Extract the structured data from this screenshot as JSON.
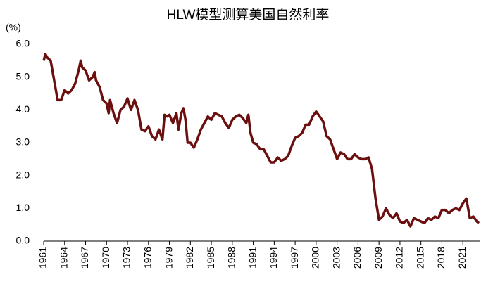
{
  "chart_data": {
    "type": "line",
    "title": "HLW模型测算美国自然利率",
    "y_unit": "(%)",
    "x": [
      1961,
      1961.25,
      1961.5,
      1962,
      1962.5,
      1963,
      1963.5,
      1964,
      1964.5,
      1965,
      1965.5,
      1966,
      1966.3,
      1966.5,
      1967,
      1967.5,
      1968,
      1968.3,
      1968.5,
      1969,
      1969.5,
      1970,
      1970.3,
      1970.5,
      1971,
      1971.5,
      1972,
      1972.5,
      1973,
      1973.5,
      1974,
      1974.5,
      1975,
      1975.5,
      1976,
      1976.5,
      1977,
      1977.5,
      1978,
      1978.3,
      1978.7,
      1979,
      1979.5,
      1980,
      1980.3,
      1980.7,
      1981,
      1981.3,
      1981.6,
      1982,
      1982.5,
      1983,
      1983.5,
      1984,
      1984.5,
      1985,
      1985.5,
      1986,
      1986.5,
      1987,
      1987.5,
      1988,
      1988.5,
      1989,
      1989.5,
      1990,
      1990.3,
      1990.6,
      1991,
      1991.5,
      1992,
      1992.5,
      1993,
      1993.5,
      1994,
      1994.5,
      1995,
      1995.5,
      1996,
      1996.5,
      1997,
      1997.5,
      1998,
      1998.5,
      1999,
      1999.5,
      2000,
      2000.5,
      2001,
      2001.5,
      2002,
      2002.5,
      2003,
      2003.5,
      2004,
      2004.5,
      2005,
      2005.5,
      2006,
      2006.5,
      2007,
      2007.5,
      2008,
      2008.5,
      2009,
      2009.5,
      2010,
      2010.5,
      2011,
      2011.5,
      2012,
      2012.5,
      2013,
      2013.5,
      2014,
      2014.5,
      2015,
      2015.5,
      2016,
      2016.5,
      2017,
      2017.5,
      2018,
      2018.5,
      2019,
      2019.5,
      2020,
      2020.5,
      2021,
      2021.5,
      2022,
      2022.5,
      2023,
      2023.3
    ],
    "series": [
      {
        "name": "HLW",
        "color": "#6b0f0f",
        "values": [
          5.5,
          5.7,
          5.6,
          5.5,
          4.9,
          4.3,
          4.3,
          4.6,
          4.5,
          4.6,
          4.8,
          5.2,
          5.5,
          5.3,
          5.2,
          4.9,
          5.0,
          5.15,
          4.9,
          4.7,
          4.3,
          4.2,
          3.9,
          4.3,
          3.9,
          3.6,
          4.0,
          4.1,
          4.35,
          4.0,
          4.3,
          4.0,
          3.4,
          3.35,
          3.5,
          3.2,
          3.1,
          3.4,
          3.1,
          3.85,
          3.8,
          3.85,
          3.6,
          3.9,
          3.4,
          3.9,
          4.05,
          3.7,
          3.0,
          3.0,
          2.85,
          3.1,
          3.4,
          3.6,
          3.8,
          3.7,
          3.9,
          3.85,
          3.8,
          3.6,
          3.45,
          3.7,
          3.8,
          3.85,
          3.75,
          3.6,
          3.85,
          3.3,
          3.0,
          2.95,
          2.8,
          2.8,
          2.6,
          2.4,
          2.4,
          2.55,
          2.45,
          2.5,
          2.6,
          2.9,
          3.15,
          3.2,
          3.3,
          3.55,
          3.55,
          3.8,
          3.95,
          3.8,
          3.65,
          3.2,
          3.1,
          2.8,
          2.5,
          2.7,
          2.65,
          2.5,
          2.5,
          2.65,
          2.55,
          2.5,
          2.5,
          2.55,
          2.2,
          1.3,
          0.65,
          0.75,
          1.0,
          0.8,
          0.7,
          0.85,
          0.6,
          0.55,
          0.65,
          0.45,
          0.7,
          0.65,
          0.6,
          0.55,
          0.7,
          0.65,
          0.75,
          0.7,
          0.95,
          0.95,
          0.85,
          0.95,
          1.0,
          0.95,
          1.15,
          1.3,
          0.7,
          0.75,
          0.6,
          0.55
        ]
      }
    ],
    "xlim": [
      1961,
      2023.5
    ],
    "xticks": [
      1961,
      1964,
      1967,
      1970,
      1973,
      1976,
      1979,
      1982,
      1985,
      1988,
      1991,
      1994,
      1997,
      2000,
      2003,
      2006,
      2009,
      2012,
      2015,
      2018,
      2021
    ],
    "ylim": [
      0,
      6
    ],
    "yticks": [
      {
        "value": 0,
        "label": "0.0"
      },
      {
        "value": 1,
        "label": "1.0"
      },
      {
        "value": 2,
        "label": "2.0"
      },
      {
        "value": 3,
        "label": "3.0"
      },
      {
        "value": 4,
        "label": "4.0"
      },
      {
        "value": 5,
        "label": "5.0"
      },
      {
        "value": 6,
        "label": "6.0"
      }
    ],
    "grid": false
  }
}
